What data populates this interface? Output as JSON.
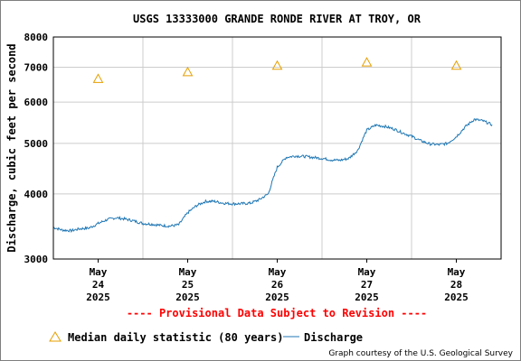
{
  "chart_data": {
    "type": "line",
    "title": "USGS 13333000 GRANDE RONDE RIVER AT TROY, OR",
    "ylabel": "Discharge, cubic feet per second",
    "xlabel": "",
    "y_scale": "log",
    "ylim": [
      3000,
      8000
    ],
    "y_ticks": [
      3000,
      4000,
      5000,
      6000,
      7000,
      8000
    ],
    "y_tick_labels": [
      "3000",
      "4000",
      "5000",
      "6000",
      "7000",
      "8000"
    ],
    "x_days": [
      {
        "month": "May",
        "day": "24",
        "year": "2025",
        "x": 24
      },
      {
        "month": "May",
        "day": "25",
        "year": "2025",
        "x": 25
      },
      {
        "month": "May",
        "day": "26",
        "year": "2025",
        "x": 26
      },
      {
        "month": "May",
        "day": "27",
        "year": "2025",
        "x": 27
      },
      {
        "month": "May",
        "day": "28",
        "year": "2025",
        "x": 28
      }
    ],
    "xlim": [
      23.5,
      28.5
    ],
    "grid": true,
    "series": [
      {
        "name": "Discharge",
        "color": "#1f77b4",
        "points": [
          [
            23.5,
            3450
          ],
          [
            23.6,
            3410
          ],
          [
            23.7,
            3400
          ],
          [
            23.8,
            3430
          ],
          [
            23.9,
            3440
          ],
          [
            24.0,
            3510
          ],
          [
            24.1,
            3570
          ],
          [
            24.2,
            3600
          ],
          [
            24.3,
            3580
          ],
          [
            24.4,
            3550
          ],
          [
            24.5,
            3510
          ],
          [
            24.6,
            3500
          ],
          [
            24.7,
            3480
          ],
          [
            24.8,
            3470
          ],
          [
            24.9,
            3490
          ],
          [
            25.0,
            3680
          ],
          [
            25.1,
            3800
          ],
          [
            25.2,
            3870
          ],
          [
            25.3,
            3870
          ],
          [
            25.4,
            3840
          ],
          [
            25.5,
            3830
          ],
          [
            25.6,
            3830
          ],
          [
            25.7,
            3840
          ],
          [
            25.8,
            3900
          ],
          [
            25.9,
            4000
          ],
          [
            26.0,
            4500
          ],
          [
            26.1,
            4700
          ],
          [
            26.2,
            4730
          ],
          [
            26.3,
            4720
          ],
          [
            26.4,
            4700
          ],
          [
            26.5,
            4680
          ],
          [
            26.6,
            4650
          ],
          [
            26.7,
            4640
          ],
          [
            26.8,
            4680
          ],
          [
            26.9,
            4850
          ],
          [
            27.0,
            5300
          ],
          [
            27.1,
            5420
          ],
          [
            27.2,
            5390
          ],
          [
            27.3,
            5330
          ],
          [
            27.4,
            5240
          ],
          [
            27.5,
            5160
          ],
          [
            27.6,
            5060
          ],
          [
            27.7,
            4990
          ],
          [
            27.8,
            4970
          ],
          [
            27.9,
            5000
          ],
          [
            28.0,
            5150
          ],
          [
            28.1,
            5380
          ],
          [
            28.2,
            5560
          ],
          [
            28.3,
            5520
          ],
          [
            28.4,
            5430
          ]
        ]
      },
      {
        "name": "Median daily statistic (80 years)",
        "color": "#e69f00",
        "marker": "triangle",
        "points": [
          [
            24,
            6650
          ],
          [
            25,
            6850
          ],
          [
            26,
            7050
          ],
          [
            27,
            7150
          ],
          [
            28,
            7050
          ]
        ]
      }
    ],
    "legend": {
      "position": "bottom",
      "items": [
        "Median daily statistic (80 years)",
        "Discharge"
      ]
    }
  },
  "provisional_notice": "---- Provisional Data Subject to Revision ----",
  "credit": "Graph courtesy of the U.S. Geological Survey",
  "colors": {
    "discharge": "#1f77b4",
    "median": "#e69f00",
    "notice": "#ff0000",
    "grid": "#cccccc"
  }
}
